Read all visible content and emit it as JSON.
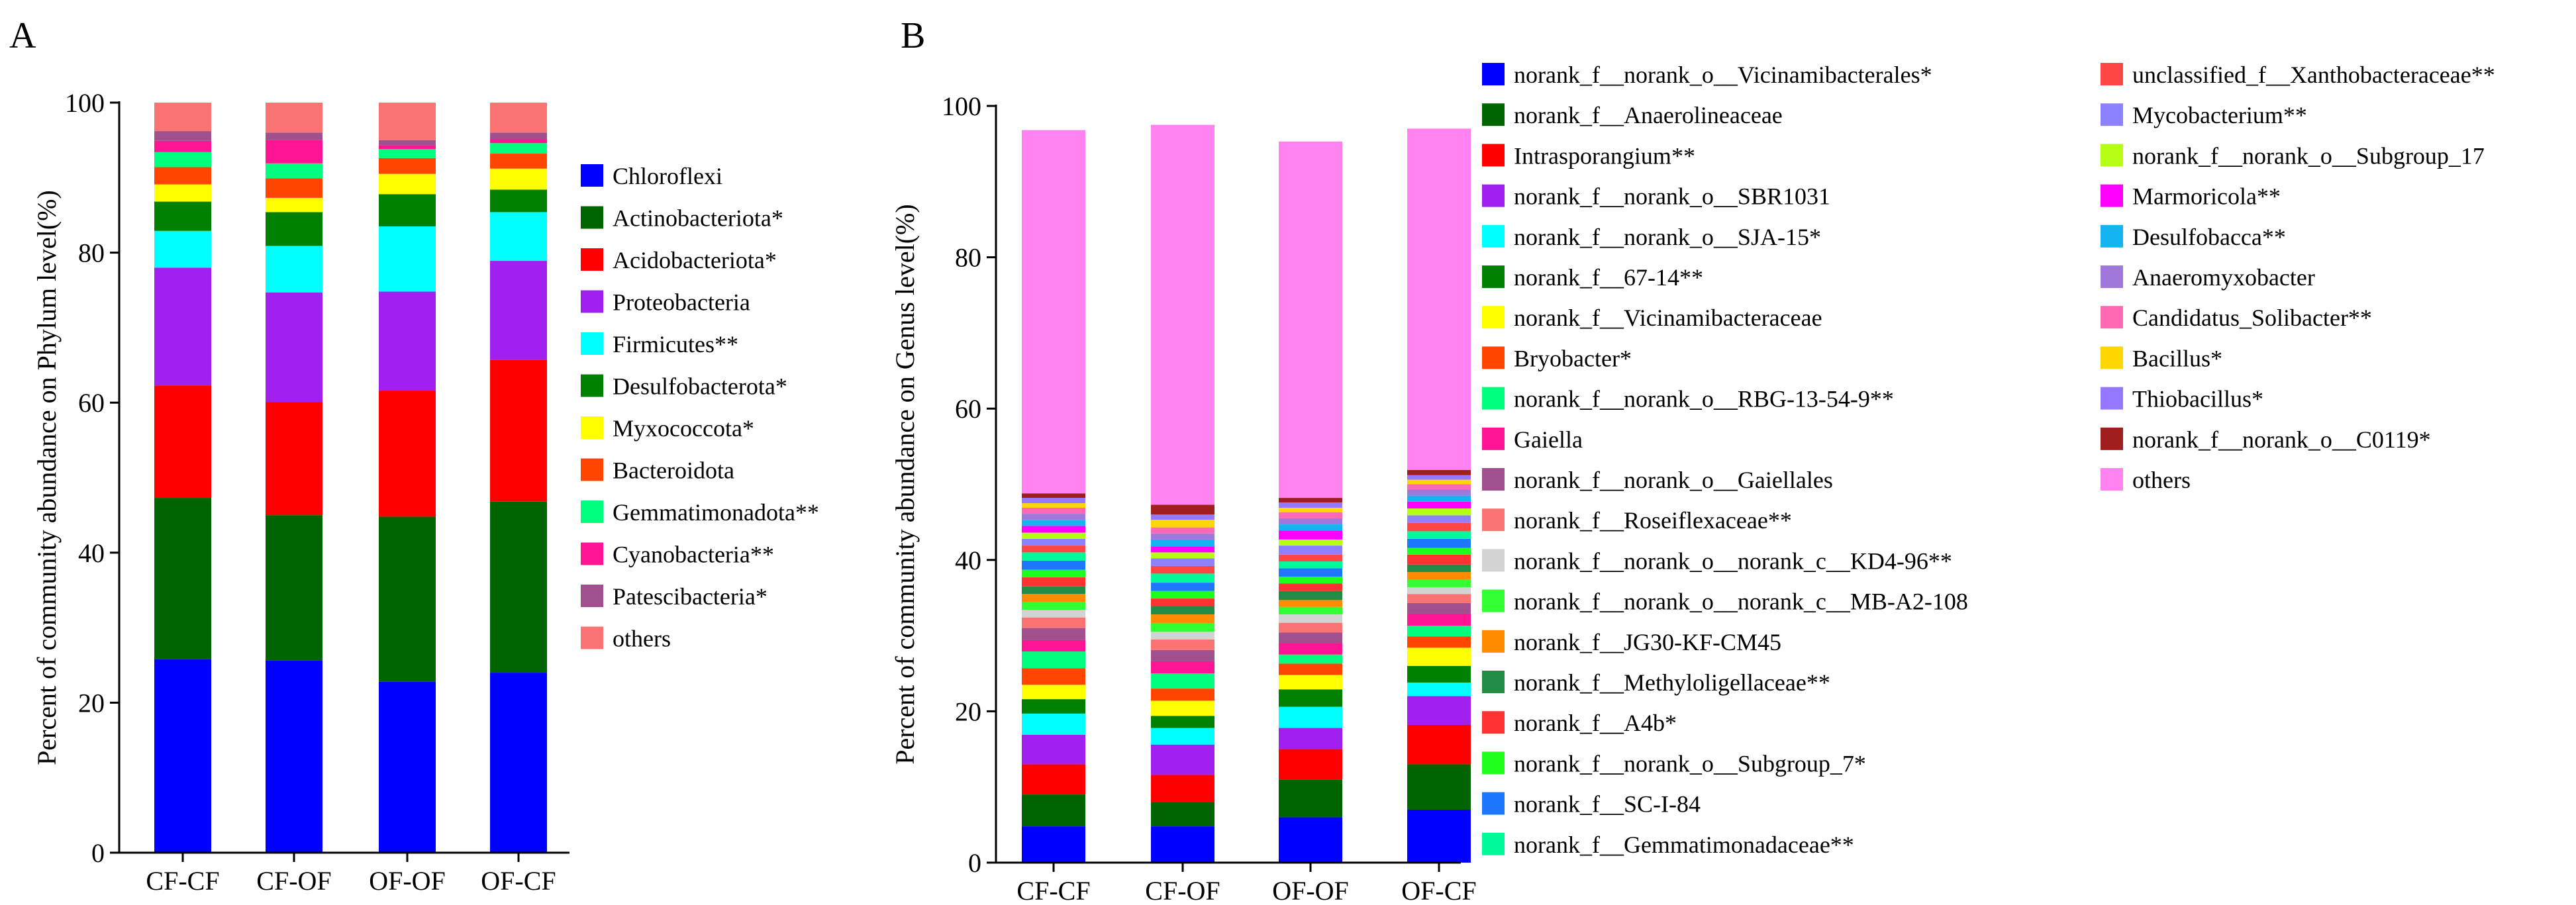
{
  "chart_data": [
    {
      "panel": "A",
      "type": "bar",
      "stacked": true,
      "title": "",
      "xlabel": "",
      "ylabel": "Percent of community abundance on Phylum level(%)",
      "ylim": [
        0,
        100
      ],
      "yticks": [
        0,
        20,
        40,
        60,
        80,
        100
      ],
      "grid": false,
      "legend": "right",
      "categories": [
        "CF-CF",
        "CF-OF",
        "OF-OF",
        "OF-CF"
      ],
      "series": [
        {
          "name": "Chloroflexi",
          "color": "#0000ff",
          "values": [
            25.8,
            25.6,
            22.8,
            24.0
          ]
        },
        {
          "name": "Actinobacteriota*",
          "color": "#006400",
          "values": [
            21.5,
            19.4,
            22.0,
            22.8
          ]
        },
        {
          "name": "Acidobacteriota*",
          "color": "#ff0000",
          "values": [
            15.0,
            15.1,
            16.8,
            18.9
          ]
        },
        {
          "name": "Proteobacteria",
          "color": "#a020f0",
          "values": [
            15.7,
            14.6,
            13.2,
            13.2
          ]
        },
        {
          "name": "Firmicutes**",
          "color": "#00ffff",
          "values": [
            4.9,
            6.2,
            8.7,
            6.5
          ]
        },
        {
          "name": "Desulfobacterota*",
          "color": "#008000",
          "values": [
            3.9,
            4.5,
            4.3,
            3.0
          ]
        },
        {
          "name": "Myxococcota*",
          "color": "#ffff00",
          "values": [
            2.3,
            1.9,
            2.7,
            2.8
          ]
        },
        {
          "name": "Bacteroidota",
          "color": "#ff4500",
          "values": [
            2.3,
            2.6,
            2.1,
            2.0
          ]
        },
        {
          "name": "Gemmatimonadota**",
          "color": "#00ff7f",
          "values": [
            2.0,
            2.0,
            1.2,
            1.4
          ]
        },
        {
          "name": "Cyanobacteria**",
          "color": "#ff1493",
          "values": [
            1.5,
            3.1,
            0.5,
            0.5
          ]
        },
        {
          "name": "Patescibacteria*",
          "color": "#a0508c",
          "values": [
            1.3,
            1.0,
            0.7,
            0.9
          ]
        },
        {
          "name": "others",
          "color": "#fa7373",
          "values": [
            3.8,
            4.0,
            5.0,
            4.0
          ]
        }
      ]
    },
    {
      "panel": "B",
      "type": "bar",
      "stacked": true,
      "title": "",
      "xlabel": "",
      "ylabel": "Percent of community abundance on Genus level(%)",
      "ylim": [
        0,
        100
      ],
      "yticks": [
        0,
        20,
        40,
        60,
        80,
        100
      ],
      "grid": false,
      "legend": "right",
      "categories": [
        "CF-CF",
        "CF-OF",
        "OF-OF",
        "OF-CF"
      ],
      "series": [
        {
          "name": "norank_f__norank_o__Vicinamibacterales*",
          "color": "#0000ff",
          "values": [
            4.8,
            4.8,
            6.0,
            7.0
          ]
        },
        {
          "name": "norank_f__Anaerolineaceae",
          "color": "#006400",
          "values": [
            4.2,
            3.2,
            5.0,
            6.0
          ]
        },
        {
          "name": "Intrasporangium**",
          "color": "#ff0000",
          "values": [
            4.0,
            3.6,
            4.0,
            5.2
          ]
        },
        {
          "name": "norank_f__norank_o__SBR1031",
          "color": "#a020f0",
          "values": [
            3.9,
            4.0,
            2.8,
            3.8
          ]
        },
        {
          "name": "norank_f__norank_o__SJA-15*",
          "color": "#00ffff",
          "values": [
            2.8,
            2.2,
            2.8,
            1.8
          ]
        },
        {
          "name": "norank_f__67-14**",
          "color": "#008000",
          "values": [
            1.9,
            1.6,
            2.3,
            2.2
          ]
        },
        {
          "name": "norank_f__Vicinamibacteraceae",
          "color": "#ffff00",
          "values": [
            1.9,
            2.0,
            1.9,
            2.4
          ]
        },
        {
          "name": "Bryobacter*",
          "color": "#ff4500",
          "values": [
            2.2,
            1.6,
            1.5,
            1.5
          ]
        },
        {
          "name": "norank_f__norank_o__RBG-13-54-9**",
          "color": "#00ff7f",
          "values": [
            2.2,
            2.0,
            1.2,
            1.4
          ]
        },
        {
          "name": "Gaiella",
          "color": "#ff1493",
          "values": [
            1.5,
            1.6,
            1.5,
            1.6
          ]
        },
        {
          "name": "norank_f__norank_o__Gaiellales",
          "color": "#a0508c",
          "values": [
            1.6,
            1.5,
            1.4,
            1.4
          ]
        },
        {
          "name": "norank_f__Roseiflexaceae**",
          "color": "#fa7373",
          "values": [
            1.4,
            1.4,
            1.3,
            1.2
          ]
        },
        {
          "name": "norank_f__norank_o__norank_c__KD4-96**",
          "color": "#d3d3d3",
          "values": [
            1.0,
            1.0,
            1.1,
            0.9
          ]
        },
        {
          "name": "norank_f__norank_o__norank_c__MB-A2-108",
          "color": "#32ff32",
          "values": [
            1.0,
            1.1,
            1.0,
            1.0
          ]
        },
        {
          "name": "norank_f__JG30-KF-CM45",
          "color": "#ff8c00",
          "values": [
            1.1,
            1.2,
            0.9,
            1.0
          ]
        },
        {
          "name": "norank_f__Methyloligellaceae**",
          "color": "#228b44",
          "values": [
            1.0,
            1.1,
            1.2,
            1.0
          ]
        },
        {
          "name": "norank_f__A4b*",
          "color": "#ff3232",
          "values": [
            1.2,
            1.0,
            1.0,
            1.3
          ]
        },
        {
          "name": "norank_f__norank_o__Subgroup_7*",
          "color": "#1eff1e",
          "values": [
            1.0,
            1.0,
            0.9,
            0.9
          ]
        },
        {
          "name": "norank_f__SC-I-84",
          "color": "#1e78ff",
          "values": [
            1.2,
            1.1,
            1.1,
            1.2
          ]
        },
        {
          "name": "norank_f__Gemmatimonadaceae**",
          "color": "#00fa9a",
          "values": [
            1.1,
            1.2,
            0.9,
            1.0
          ]
        },
        {
          "name": "unclassified_f__Xanthobacteraceae**",
          "color": "#ff4646",
          "values": [
            0.9,
            1.0,
            0.9,
            1.1
          ]
        },
        {
          "name": "Mycobacterium**",
          "color": "#8c82ff",
          "values": [
            0.9,
            1.0,
            1.2,
            1.0
          ]
        },
        {
          "name": "norank_f__norank_o__Subgroup_17",
          "color": "#b4ff14",
          "values": [
            0.8,
            0.8,
            0.8,
            0.9
          ]
        },
        {
          "name": "Marmoricola**",
          "color": "#ff00ff",
          "values": [
            0.9,
            0.8,
            1.2,
            0.9
          ]
        },
        {
          "name": "Desulfobacca**",
          "color": "#14b4f0",
          "values": [
            0.8,
            0.9,
            0.8,
            0.8
          ]
        },
        {
          "name": "Anaeromyxobacter",
          "color": "#a078dc",
          "values": [
            0.8,
            0.8,
            0.8,
            0.8
          ]
        },
        {
          "name": "Candidatus_Solibacter**",
          "color": "#ff69b4",
          "values": [
            0.8,
            0.8,
            0.8,
            0.7
          ]
        },
        {
          "name": "Bacillus*",
          "color": "#ffd700",
          "values": [
            0.6,
            1.0,
            0.6,
            0.6
          ]
        },
        {
          "name": "Thiobacillus*",
          "color": "#9478ff",
          "values": [
            0.7,
            0.7,
            0.7,
            0.6
          ]
        },
        {
          "name": "norank_f__norank_o__C0119*",
          "color": "#a01e1e",
          "values": [
            0.6,
            1.3,
            0.6,
            0.7
          ]
        },
        {
          "name": "others",
          "color": "#ff82f0",
          "values": [
            48.0,
            50.2,
            47.1,
            45.1
          ]
        }
      ]
    }
  ]
}
